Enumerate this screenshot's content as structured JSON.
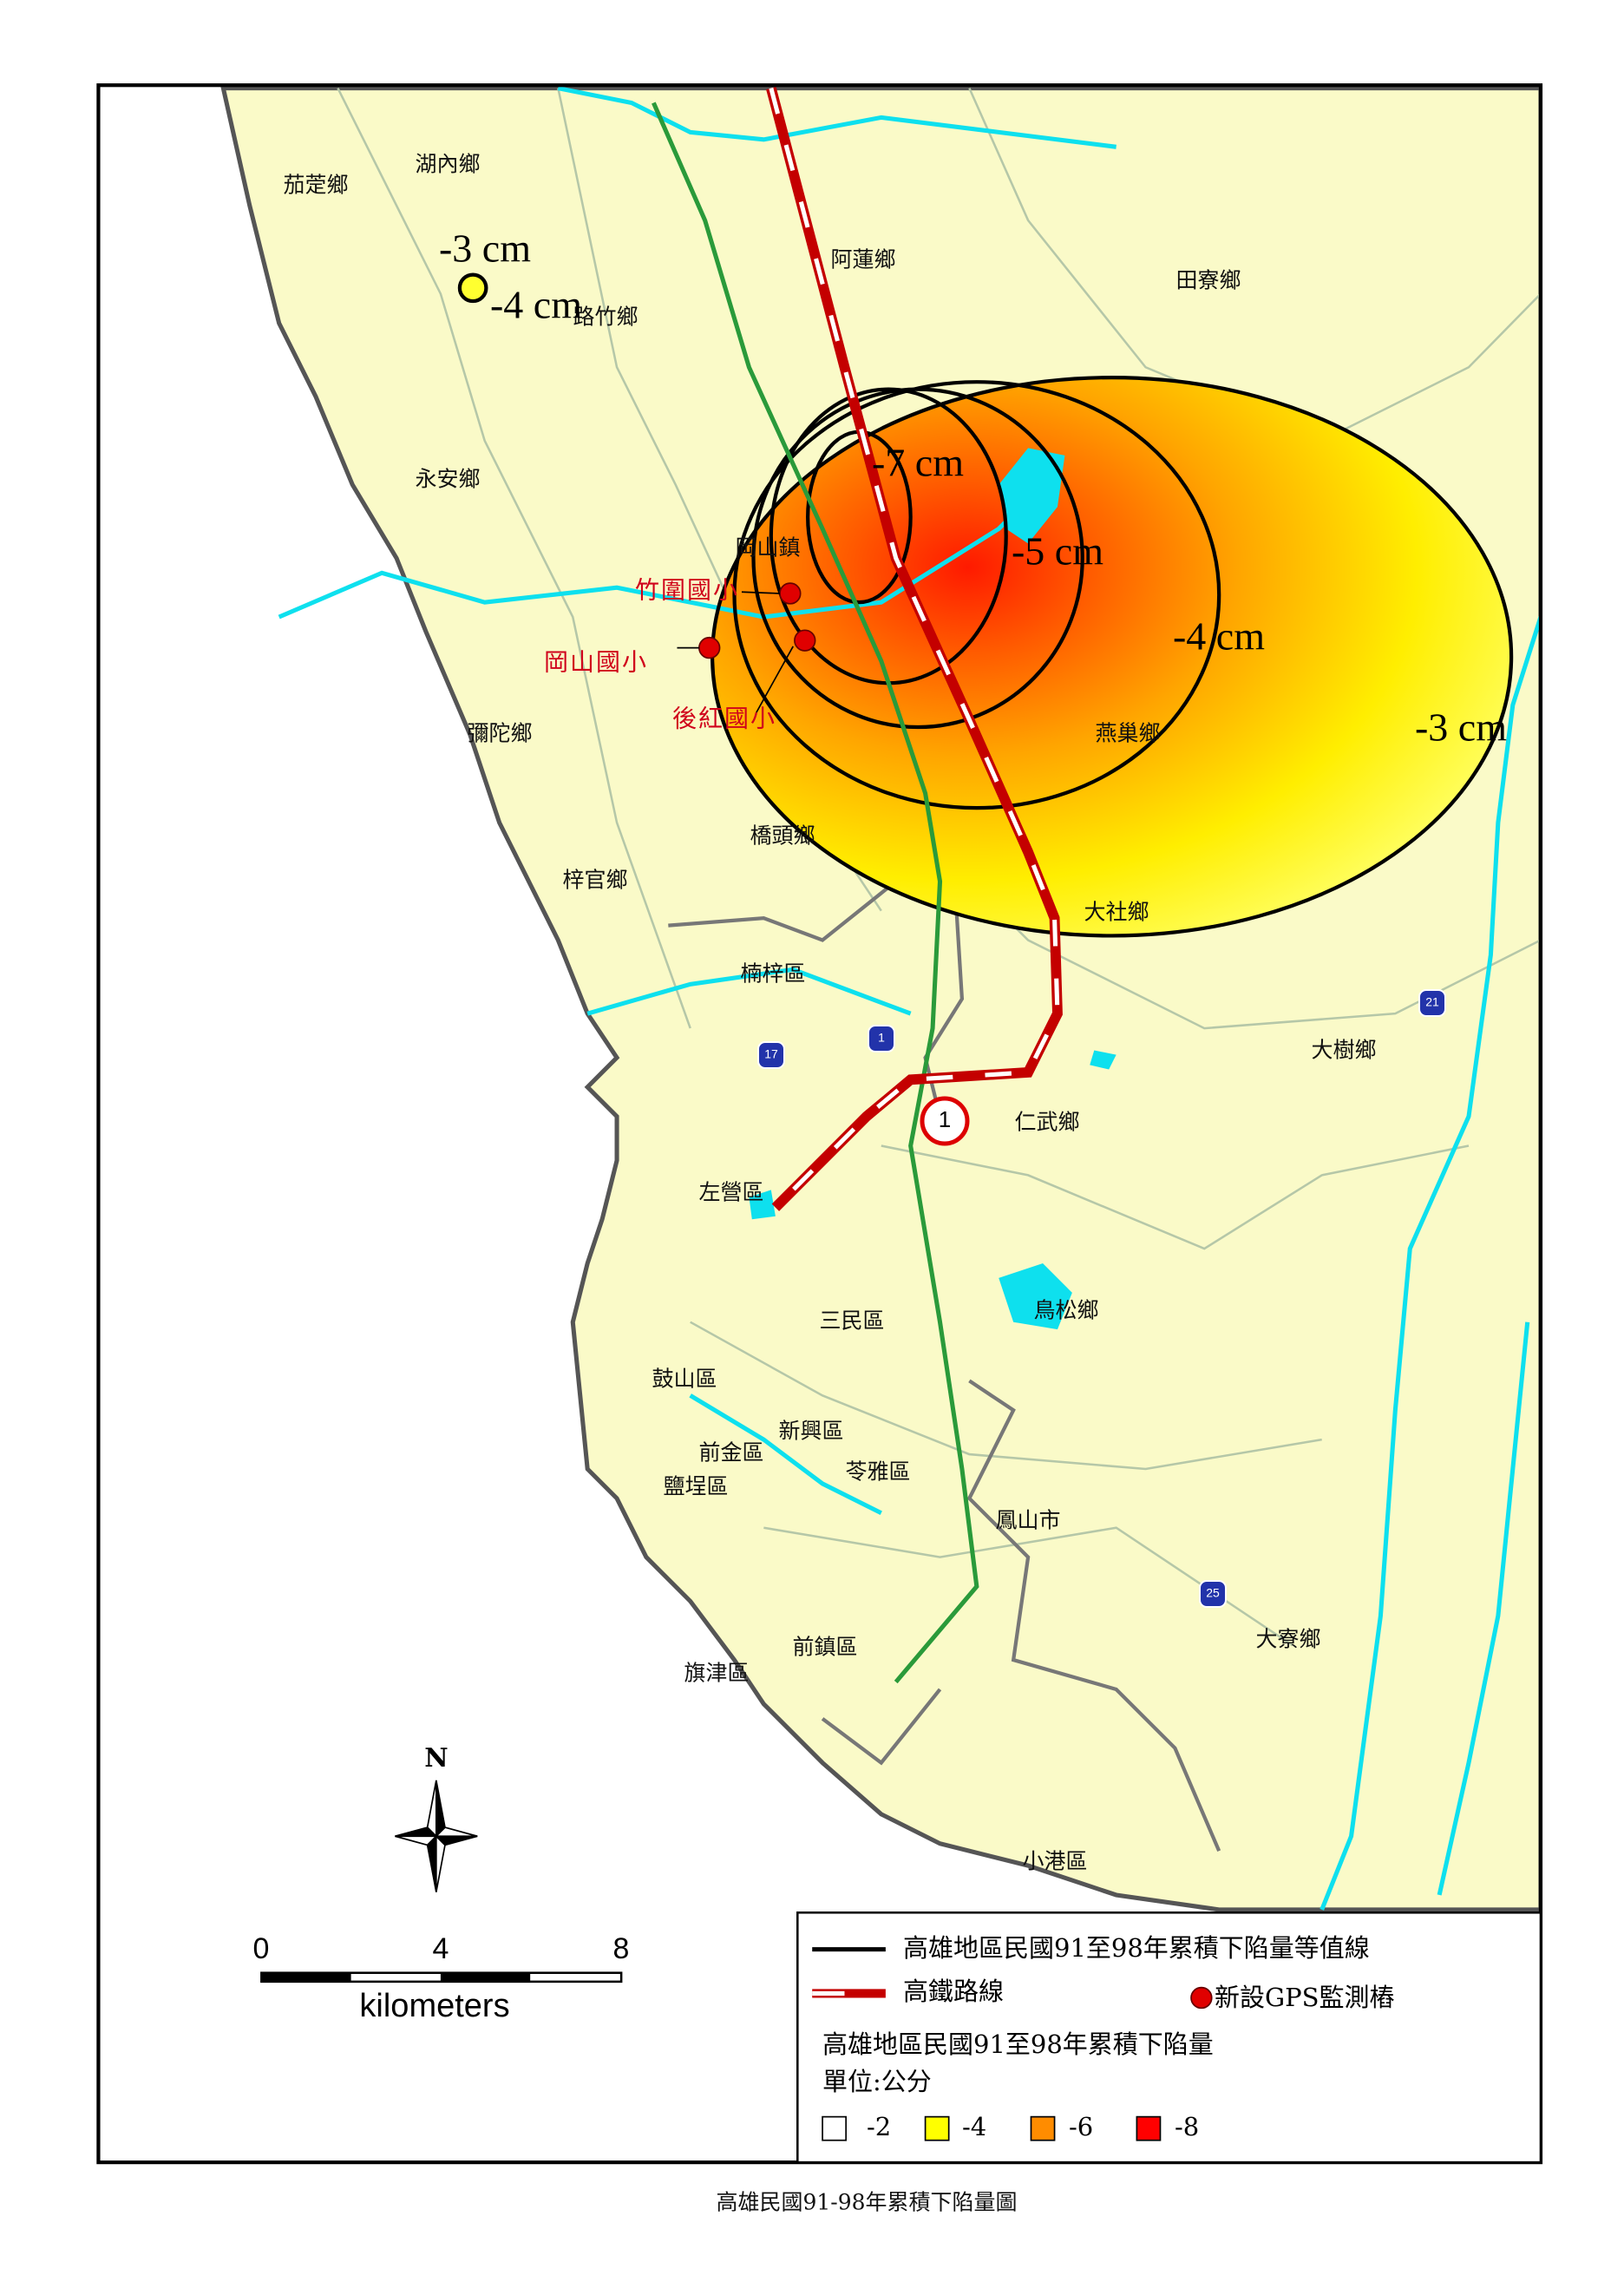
{
  "map": {
    "caption": "高雄民國91-98年累積下陷量圖",
    "places": [
      "茄萣鄉",
      "湖內鄉",
      "路竹鄉",
      "阿蓮鄉",
      "田寮鄉",
      "永安鄉",
      "岡山鎮",
      "彌陀鄉",
      "燕巢鄉",
      "橋頭鄉",
      "梓官鄉",
      "大社鄉",
      "楠梓區",
      "大樹鄉",
      "仁武鄉",
      "左營區",
      "鳥松鄉",
      "三民區",
      "鼓山區",
      "新興區",
      "前金區",
      "苓雅區",
      "鹽埕區",
      "鳳山市",
      "大寮鄉",
      "前鎮區",
      "旗津區",
      "小港區"
    ],
    "contour_labels": [
      "-3 cm",
      "-4 cm",
      "-7 cm",
      "-5 cm",
      "-4 cm",
      "-3 cm"
    ],
    "schools": [
      "竹圍國小",
      "岡山國小",
      "後紅國小"
    ],
    "route_shields": [
      "1",
      "17",
      "21",
      "25",
      "1"
    ],
    "north": "N",
    "scale_bar": {
      "ticks": [
        "0",
        "4",
        "8"
      ],
      "unit": "kilometers"
    },
    "legend": {
      "contour_line": "高雄地區民國91至98年累積下陷量等值線",
      "rail": "高鐵路線",
      "gps": "新設GPS監測樁",
      "heading": "高雄地區民國91至98年累積下陷量",
      "unit": "單位:公分",
      "classes": [
        "-2",
        "-4",
        "-6",
        "-8"
      ]
    }
  }
}
